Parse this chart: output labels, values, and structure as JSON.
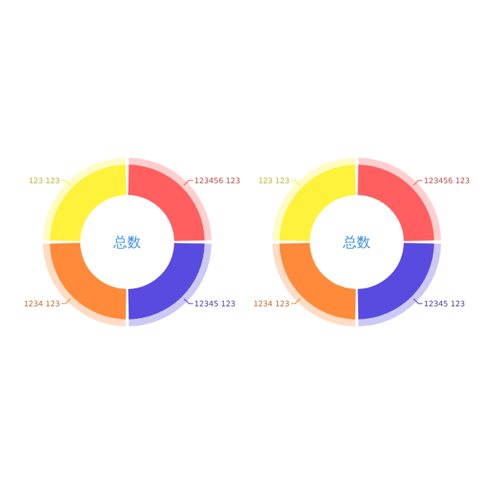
{
  "chart_data": [
    {
      "type": "donut",
      "categories": [
        "123456 123",
        "12345 123",
        "1234 123",
        "123 123"
      ],
      "values": [
        25,
        25,
        25,
        25
      ],
      "colors": [
        "#ff5f5f",
        "#5a4be0",
        "#ff8a3a",
        "#fff23a"
      ],
      "annotations": [
        "总数"
      ]
    },
    {
      "type": "donut",
      "categories": [
        "123456 123",
        "12345 123",
        "1234 123",
        "123 123"
      ],
      "values": [
        25,
        25,
        25,
        25
      ],
      "colors": [
        "#ff5f5f",
        "#5a4be0",
        "#ff8a3a",
        "#fff23a"
      ],
      "annotations": [
        "总数"
      ]
    }
  ]
}
